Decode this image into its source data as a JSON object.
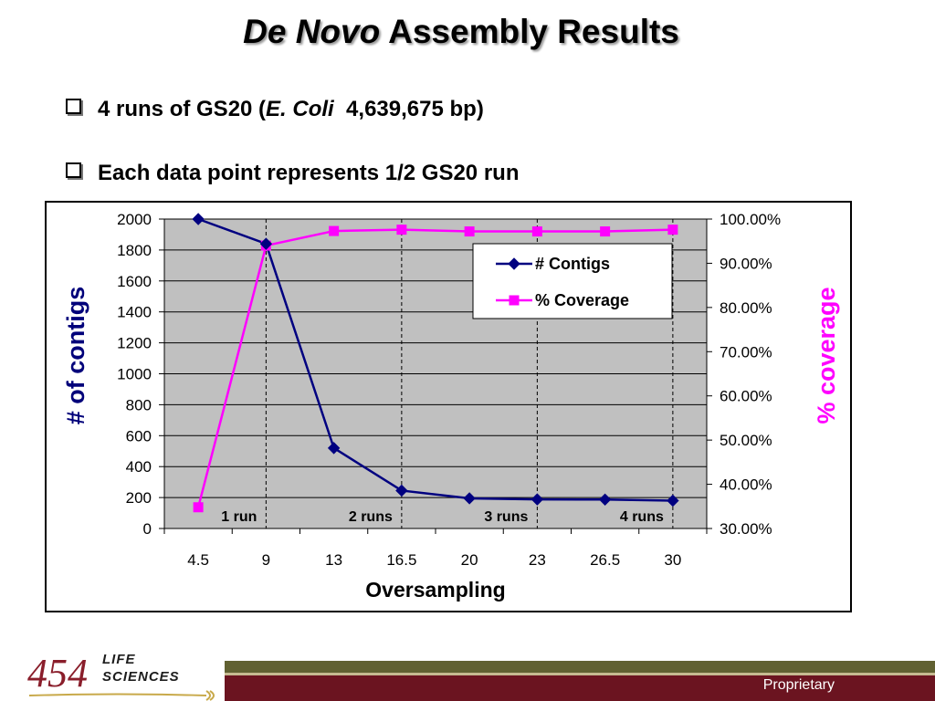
{
  "slide": {
    "title_italic": "De Novo",
    "title_rest": "Assembly Results",
    "bullet1_a": "4 runs of GS20 (",
    "bullet1_italic": "E. Coli",
    "bullet1_b": "  4,639,675 bp)",
    "bullet2": "Each data point represents 1/2 GS20 run"
  },
  "footer": {
    "logo_number": "454",
    "logo_line1": "LIFE",
    "logo_line2": "SCIENCES",
    "proprietary": "Proprietary"
  },
  "colors": {
    "contigs": "#000080",
    "coverage": "#ff00ff",
    "plot_bg": "#c0c0c0",
    "left_axis_label": "#00007a",
    "right_axis_label": "#ff00ff",
    "footer_maroon": "#6b1420"
  },
  "chart_data": {
    "type": "line",
    "categories": [
      "4.5",
      "9",
      "13",
      "16.5",
      "20",
      "23",
      "26.5",
      "30"
    ],
    "series": [
      {
        "name": "# Contigs",
        "axis": "left",
        "marker": "diamond",
        "values": [
          2000,
          1840,
          520,
          245,
          195,
          188,
          187,
          180
        ]
      },
      {
        "name": "% Coverage",
        "axis": "right",
        "marker": "square",
        "values": [
          34.8,
          94.0,
          97.3,
          97.6,
          97.2,
          97.2,
          97.2,
          97.6
        ]
      }
    ],
    "xlabel": "Oversampling",
    "ylabel_left": "# of contigs",
    "ylabel_right": "% coverage",
    "ylim_left": [
      0,
      2000
    ],
    "ylim_right": [
      30,
      100
    ],
    "yticks_left": [
      "0",
      "200",
      "400",
      "600",
      "800",
      "1000",
      "1200",
      "1400",
      "1600",
      "1800",
      "2000"
    ],
    "yticks_right": [
      "30.00%",
      "40.00%",
      "50.00%",
      "60.00%",
      "70.00%",
      "80.00%",
      "90.00%",
      "100.00%"
    ],
    "run_markers": [
      {
        "after_category": "9",
        "label": "1 run"
      },
      {
        "after_category": "16.5",
        "label": "2 runs"
      },
      {
        "after_category": "23",
        "label": "3 runs"
      },
      {
        "after_category": "30",
        "label": "4 runs"
      }
    ],
    "legend_position": "top-right",
    "grid": true
  }
}
